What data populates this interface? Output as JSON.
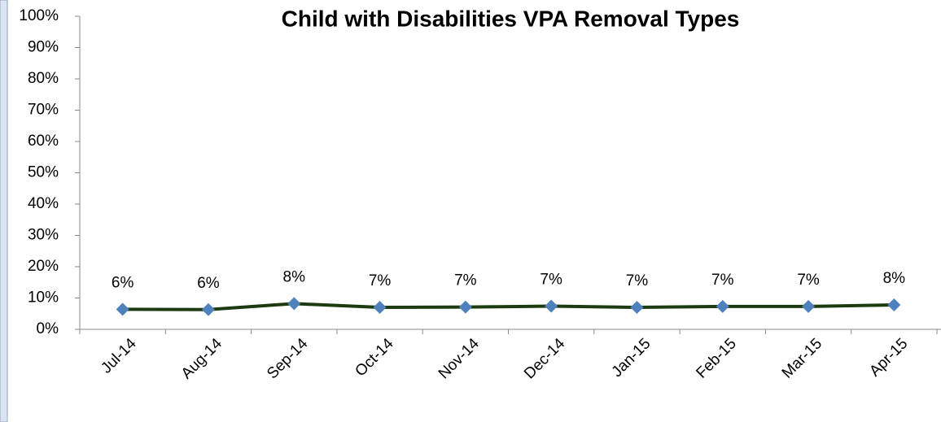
{
  "chart_data": {
    "type": "line",
    "title": "Child with Disabilities VPA Removal Types",
    "categories": [
      "Jul-14",
      "Aug-14",
      "Sep-14",
      "Oct-14",
      "Nov-14",
      "Dec-14",
      "Jan-15",
      "Feb-15",
      "Mar-15",
      "Apr-15"
    ],
    "series": [
      {
        "name": "Child with Disabilities VPA Removal Types",
        "color": "#1c3b10",
        "marker_color": "#4f81bd",
        "values": [
          6.4,
          6.3,
          8.2,
          7.0,
          7.1,
          7.4,
          7.0,
          7.3,
          7.3,
          7.8
        ],
        "value_labels": [
          "6%",
          "6%",
          "8%",
          "7%",
          "7%",
          "7%",
          "7%",
          "7%",
          "7%",
          "8%"
        ]
      }
    ],
    "ylim": [
      0,
      100
    ],
    "yticks": [
      {
        "value": 0,
        "label": "0%"
      },
      {
        "value": 10,
        "label": "10%"
      },
      {
        "value": 20,
        "label": "20%"
      },
      {
        "value": 30,
        "label": "30%"
      },
      {
        "value": 40,
        "label": "40%"
      },
      {
        "value": 50,
        "label": "50%"
      },
      {
        "value": 60,
        "label": "60%"
      },
      {
        "value": 70,
        "label": "70%"
      },
      {
        "value": 80,
        "label": "80%"
      },
      {
        "value": 90,
        "label": "90%"
      },
      {
        "value": 100,
        "label": "100%"
      }
    ],
    "grid": false
  }
}
